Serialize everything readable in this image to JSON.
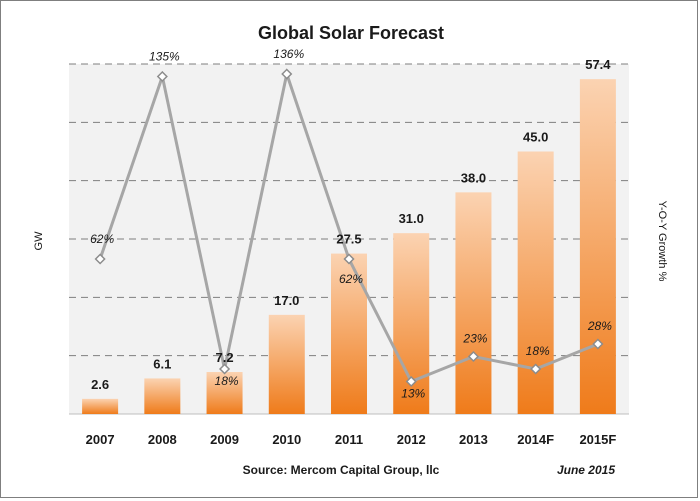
{
  "chart_data": {
    "type": "bar",
    "title": "Global Solar Forecast",
    "categories": [
      "2007",
      "2008",
      "2009",
      "2010",
      "2011",
      "2012",
      "2013",
      "2014F",
      "2015F"
    ],
    "series": [
      {
        "name": "GW",
        "type": "bar",
        "axis": "left",
        "values": [
          2.6,
          6.1,
          7.2,
          17.0,
          27.5,
          31.0,
          38.0,
          45.0,
          57.4
        ],
        "labels": [
          "2.6",
          "6.1",
          "7.2",
          "17.0",
          "27.5",
          "31.0",
          "38.0",
          "45.0",
          "57.4"
        ]
      },
      {
        "name": "Y-O-Y Growth %",
        "type": "line",
        "axis": "right",
        "values": [
          62,
          135,
          18,
          136,
          62,
          13,
          23,
          18,
          28
        ],
        "labels": [
          "62%",
          "135%",
          "18%",
          "136%",
          "62%",
          "13%",
          "23%",
          "18%",
          "28%"
        ]
      }
    ],
    "ylabel": "GW",
    "y2label": "Y-O-Y Growth %",
    "ylim": [
      0,
      60
    ],
    "y2lim": [
      0,
      140
    ],
    "grid": true,
    "source": "Source: Mercom Capital Group, llc",
    "date": "June 2015",
    "colors": {
      "bar_top": "#fbd3b2",
      "bar_bottom": "#ef7b1a",
      "line": "#a6a6a6",
      "marker_fill": "#ffffff",
      "marker_stroke": "#8c8c8c",
      "plot_background": "#f2f2f2",
      "gridline": "#7f7f7f"
    }
  }
}
